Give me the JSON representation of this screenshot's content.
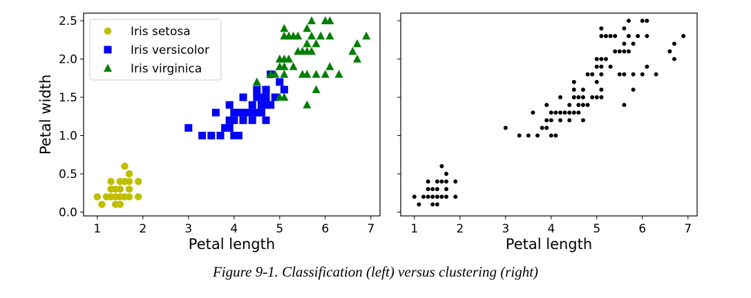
{
  "chart_data": [
    {
      "type": "scatter",
      "xlabel": "Petal length",
      "ylabel": "Petal width",
      "xlim": [
        0.7,
        7.2
      ],
      "ylim": [
        -0.05,
        2.6
      ],
      "xticks": [
        "1",
        "2",
        "3",
        "4",
        "5",
        "6",
        "7"
      ],
      "yticks": [
        "0.0",
        "0.5",
        "1.0",
        "1.5",
        "2.0",
        "2.5"
      ],
      "legend_position": "top-left",
      "series": [
        {
          "name": "Iris setosa",
          "marker": "circle",
          "color": "#bfbf00",
          "points": [
            [
              1.0,
              0.2
            ],
            [
              1.1,
              0.1
            ],
            [
              1.2,
              0.2
            ],
            [
              1.3,
              0.2
            ],
            [
              1.3,
              0.3
            ],
            [
              1.3,
              0.4
            ],
            [
              1.4,
              0.1
            ],
            [
              1.4,
              0.2
            ],
            [
              1.4,
              0.3
            ],
            [
              1.5,
              0.1
            ],
            [
              1.5,
              0.2
            ],
            [
              1.5,
              0.3
            ],
            [
              1.5,
              0.4
            ],
            [
              1.6,
              0.2
            ],
            [
              1.6,
              0.4
            ],
            [
              1.6,
              0.6
            ],
            [
              1.7,
              0.2
            ],
            [
              1.7,
              0.3
            ],
            [
              1.7,
              0.4
            ],
            [
              1.7,
              0.5
            ],
            [
              1.9,
              0.2
            ],
            [
              1.9,
              0.4
            ]
          ]
        },
        {
          "name": "Iris versicolor",
          "marker": "square",
          "color": "#0000ff",
          "points": [
            [
              3.0,
              1.1
            ],
            [
              3.3,
              1.0
            ],
            [
              3.5,
              1.0
            ],
            [
              3.6,
              1.3
            ],
            [
              3.7,
              1.0
            ],
            [
              3.8,
              1.1
            ],
            [
              3.9,
              1.1
            ],
            [
              3.9,
              1.2
            ],
            [
              3.9,
              1.4
            ],
            [
              4.0,
              1.0
            ],
            [
              4.0,
              1.2
            ],
            [
              4.0,
              1.3
            ],
            [
              4.1,
              1.0
            ],
            [
              4.1,
              1.3
            ],
            [
              4.2,
              1.2
            ],
            [
              4.2,
              1.3
            ],
            [
              4.2,
              1.5
            ],
            [
              4.3,
              1.3
            ],
            [
              4.4,
              1.2
            ],
            [
              4.4,
              1.3
            ],
            [
              4.4,
              1.4
            ],
            [
              4.5,
              1.3
            ],
            [
              4.5,
              1.5
            ],
            [
              4.5,
              1.6
            ],
            [
              4.6,
              1.3
            ],
            [
              4.6,
              1.4
            ],
            [
              4.6,
              1.5
            ],
            [
              4.7,
              1.2
            ],
            [
              4.7,
              1.4
            ],
            [
              4.7,
              1.5
            ],
            [
              4.7,
              1.6
            ],
            [
              4.8,
              1.4
            ],
            [
              4.8,
              1.8
            ],
            [
              4.9,
              1.5
            ],
            [
              5.0,
              1.7
            ],
            [
              5.1,
              1.6
            ]
          ]
        },
        {
          "name": "Iris virginica",
          "marker": "triangle",
          "color": "#008000",
          "points": [
            [
              4.5,
              1.7
            ],
            [
              4.8,
              1.8
            ],
            [
              4.9,
              1.8
            ],
            [
              5.0,
              1.5
            ],
            [
              5.0,
              1.9
            ],
            [
              5.0,
              2.0
            ],
            [
              5.1,
              1.5
            ],
            [
              5.1,
              1.8
            ],
            [
              5.1,
              1.9
            ],
            [
              5.1,
              2.0
            ],
            [
              5.1,
              2.3
            ],
            [
              5.1,
              2.4
            ],
            [
              5.2,
              2.0
            ],
            [
              5.2,
              2.3
            ],
            [
              5.3,
              1.9
            ],
            [
              5.3,
              2.3
            ],
            [
              5.4,
              2.1
            ],
            [
              5.4,
              2.3
            ],
            [
              5.5,
              1.8
            ],
            [
              5.5,
              2.1
            ],
            [
              5.6,
              1.4
            ],
            [
              5.6,
              1.8
            ],
            [
              5.6,
              2.1
            ],
            [
              5.6,
              2.2
            ],
            [
              5.6,
              2.4
            ],
            [
              5.7,
              2.1
            ],
            [
              5.7,
              2.3
            ],
            [
              5.7,
              2.5
            ],
            [
              5.8,
              1.6
            ],
            [
              5.8,
              1.8
            ],
            [
              5.8,
              2.2
            ],
            [
              5.9,
              2.3
            ],
            [
              6.0,
              1.8
            ],
            [
              6.0,
              2.5
            ],
            [
              6.1,
              1.9
            ],
            [
              6.1,
              2.3
            ],
            [
              6.1,
              2.5
            ],
            [
              6.3,
              1.8
            ],
            [
              6.6,
              2.1
            ],
            [
              6.7,
              2.0
            ],
            [
              6.7,
              2.2
            ],
            [
              6.9,
              2.3
            ]
          ]
        }
      ]
    },
    {
      "type": "scatter",
      "xlabel": "Petal length",
      "ylabel": "",
      "xlim": [
        0.7,
        7.2
      ],
      "ylim": [
        -0.05,
        2.6
      ],
      "xticks": [
        "1",
        "2",
        "3",
        "4",
        "5",
        "6",
        "7"
      ],
      "series": [
        {
          "marker": "dot",
          "color": "#000000",
          "points": [
            [
              1.0,
              0.2
            ],
            [
              1.1,
              0.1
            ],
            [
              1.2,
              0.2
            ],
            [
              1.3,
              0.2
            ],
            [
              1.3,
              0.3
            ],
            [
              1.3,
              0.4
            ],
            [
              1.4,
              0.1
            ],
            [
              1.4,
              0.2
            ],
            [
              1.4,
              0.3
            ],
            [
              1.5,
              0.1
            ],
            [
              1.5,
              0.2
            ],
            [
              1.5,
              0.3
            ],
            [
              1.5,
              0.4
            ],
            [
              1.6,
              0.2
            ],
            [
              1.6,
              0.4
            ],
            [
              1.6,
              0.6
            ],
            [
              1.7,
              0.2
            ],
            [
              1.7,
              0.3
            ],
            [
              1.7,
              0.4
            ],
            [
              1.7,
              0.5
            ],
            [
              1.9,
              0.2
            ],
            [
              1.9,
              0.4
            ],
            [
              3.0,
              1.1
            ],
            [
              3.3,
              1.0
            ],
            [
              3.5,
              1.0
            ],
            [
              3.6,
              1.3
            ],
            [
              3.7,
              1.0
            ],
            [
              3.8,
              1.1
            ],
            [
              3.9,
              1.1
            ],
            [
              3.9,
              1.2
            ],
            [
              3.9,
              1.4
            ],
            [
              4.0,
              1.0
            ],
            [
              4.0,
              1.2
            ],
            [
              4.0,
              1.3
            ],
            [
              4.1,
              1.0
            ],
            [
              4.1,
              1.3
            ],
            [
              4.2,
              1.2
            ],
            [
              4.2,
              1.3
            ],
            [
              4.2,
              1.5
            ],
            [
              4.3,
              1.3
            ],
            [
              4.4,
              1.2
            ],
            [
              4.4,
              1.3
            ],
            [
              4.4,
              1.4
            ],
            [
              4.5,
              1.3
            ],
            [
              4.5,
              1.5
            ],
            [
              4.5,
              1.6
            ],
            [
              4.6,
              1.3
            ],
            [
              4.6,
              1.4
            ],
            [
              4.6,
              1.5
            ],
            [
              4.7,
              1.2
            ],
            [
              4.7,
              1.4
            ],
            [
              4.7,
              1.5
            ],
            [
              4.7,
              1.6
            ],
            [
              4.8,
              1.4
            ],
            [
              4.8,
              1.8
            ],
            [
              4.9,
              1.5
            ],
            [
              5.0,
              1.7
            ],
            [
              5.1,
              1.6
            ],
            [
              4.5,
              1.7
            ],
            [
              4.9,
              1.8
            ],
            [
              5.0,
              1.5
            ],
            [
              5.0,
              1.9
            ],
            [
              5.0,
              2.0
            ],
            [
              5.1,
              1.5
            ],
            [
              5.1,
              1.8
            ],
            [
              5.1,
              1.9
            ],
            [
              5.1,
              2.0
            ],
            [
              5.1,
              2.3
            ],
            [
              5.1,
              2.4
            ],
            [
              5.2,
              2.0
            ],
            [
              5.2,
              2.3
            ],
            [
              5.3,
              1.9
            ],
            [
              5.3,
              2.3
            ],
            [
              5.4,
              2.1
            ],
            [
              5.4,
              2.3
            ],
            [
              5.5,
              1.8
            ],
            [
              5.5,
              2.1
            ],
            [
              5.6,
              1.4
            ],
            [
              5.6,
              1.8
            ],
            [
              5.6,
              2.1
            ],
            [
              5.6,
              2.2
            ],
            [
              5.6,
              2.4
            ],
            [
              5.7,
              2.1
            ],
            [
              5.7,
              2.3
            ],
            [
              5.7,
              2.5
            ],
            [
              5.8,
              1.6
            ],
            [
              5.8,
              1.8
            ],
            [
              5.8,
              2.2
            ],
            [
              5.9,
              2.3
            ],
            [
              6.0,
              1.8
            ],
            [
              6.0,
              2.5
            ],
            [
              6.1,
              1.9
            ],
            [
              6.1,
              2.3
            ],
            [
              6.1,
              2.5
            ],
            [
              6.3,
              1.8
            ],
            [
              6.6,
              2.1
            ],
            [
              6.7,
              2.0
            ],
            [
              6.7,
              2.2
            ],
            [
              6.9,
              2.3
            ]
          ]
        }
      ]
    }
  ],
  "caption": "Figure 9-1. Classification (left) versus clustering (right)"
}
